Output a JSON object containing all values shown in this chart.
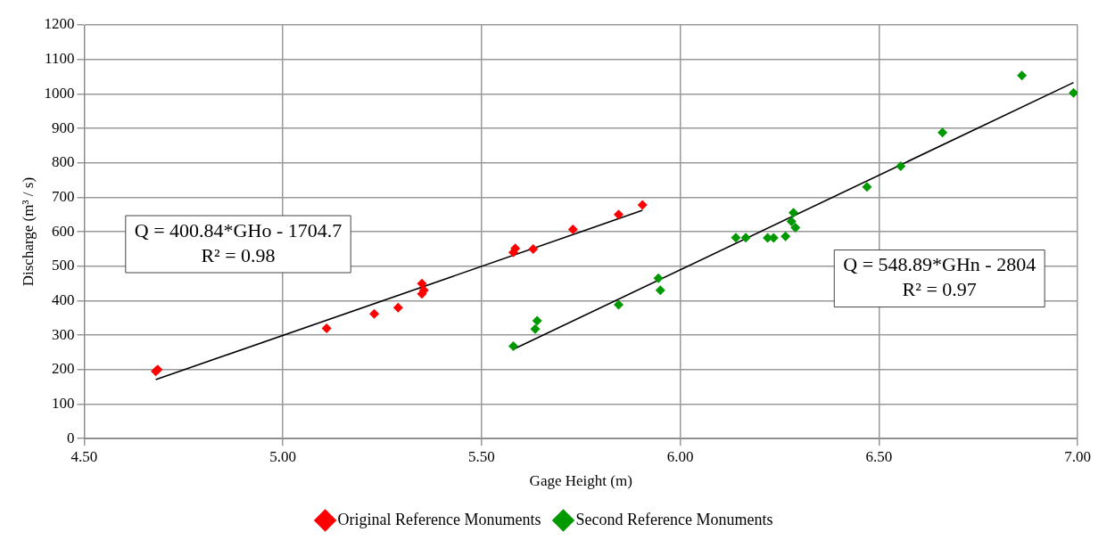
{
  "chart_data": {
    "type": "scatter",
    "xlabel": "Gage Height (m)",
    "ylabel": "Discharge (m³ / s)",
    "xlim": [
      4.5,
      7
    ],
    "xticks": [
      {
        "value": 4.5,
        "label": "4.50"
      },
      {
        "value": 5,
        "label": "5.00"
      },
      {
        "value": 5.5,
        "label": "5.50"
      },
      {
        "value": 6,
        "label": "6.00"
      },
      {
        "value": 6.5,
        "label": "6.50"
      },
      {
        "value": 7,
        "label": "7.00"
      }
    ],
    "ylim": [
      0,
      1200
    ],
    "yticks": [
      0,
      100,
      200,
      300,
      400,
      500,
      600,
      700,
      800,
      900,
      1000,
      1100,
      1200
    ],
    "grid": true,
    "legend": "bottom",
    "marker": "diamond",
    "series": [
      {
        "name": "Original Reference Monuments",
        "color": "#ff0000",
        "x": [
          4.68,
          4.685,
          5.11,
          5.23,
          5.29,
          5.35,
          5.355,
          5.35,
          5.58,
          5.585,
          5.63,
          5.73,
          5.845,
          5.905
        ],
        "values": [
          195,
          200,
          320,
          362,
          380,
          420,
          430,
          450,
          540,
          552,
          550,
          607,
          650,
          678
        ]
      },
      {
        "name": "Second Reference Monuments",
        "color": "#009900",
        "x": [
          5.58,
          5.635,
          5.64,
          5.845,
          5.945,
          5.95,
          6.14,
          6.165,
          6.22,
          6.235,
          6.265,
          6.28,
          6.285,
          6.29,
          6.47,
          6.555,
          6.66,
          6.86,
          6.99
        ],
        "values": [
          268,
          318,
          342,
          388,
          465,
          430,
          583,
          583,
          582,
          582,
          587,
          630,
          655,
          612,
          730,
          790,
          888,
          1053,
          1003
        ]
      },
      {
        "type": "line",
        "color": "#000000",
        "marker": "none",
        "x": [
          4.68,
          5.905
        ],
        "values": [
          171,
          662
        ]
      },
      {
        "type": "line",
        "color": "#000000",
        "marker": "none",
        "x": [
          5.58,
          6.99
        ],
        "values": [
          259,
          1033
        ]
      }
    ],
    "annotations": [
      "Q = 400.84*GHo - 1704.7\nR² = 0.98",
      "Q = 548.89*GHn - 2804\nR² = 0.97"
    ]
  }
}
